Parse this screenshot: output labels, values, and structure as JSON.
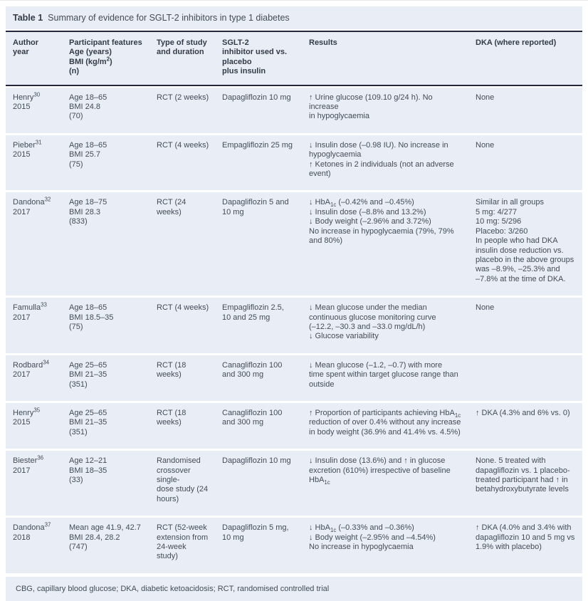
{
  "page": {
    "title_label": "Table 1",
    "title_text": "Summary of evidence for SGLT-2 inhibitors in type 1 diabetes",
    "footnote": "CBG, capillary blood glucose; DKA, diabetic ketoacidosis; RCT, randomised controlled trial"
  },
  "colors": {
    "band": "#e8edf6",
    "rule": "#242a3c",
    "text": "#454c57",
    "heading": "#343b46",
    "page": "#ffffff"
  },
  "table": {
    "columns": [
      {
        "id": "author",
        "header": "Author\nyear"
      },
      {
        "id": "participants",
        "header": "Participant features\nAge (years)\nBMI (kg/m^{2})\n(n)"
      },
      {
        "id": "study",
        "header": "Type of study\nand duration"
      },
      {
        "id": "inhibitor",
        "header": "SGLT-2\ninhibitor used vs.\nplacebo\nplus insulin"
      },
      {
        "id": "results",
        "header": "Results"
      },
      {
        "id": "dka",
        "header": "DKA (where reported)"
      }
    ],
    "rows": [
      {
        "author": "Henry^{30} 2015",
        "participants": "Age 18–65\nBMI 24.8\n(70)",
        "study": "RCT (2 weeks)",
        "inhibitor": "Dapagliflozin 10 mg",
        "results": "↑ Urine glucose (109.10 g/24 h). No increase\nin hypoglycaemia",
        "dka": "None"
      },
      {
        "author": "Pieber^{31} 2015",
        "participants": "Age 18–65\nBMI 25.7\n(75)",
        "study": "RCT (4 weeks)",
        "inhibitor": "Empagliflozin 25 mg",
        "results": "↓ Insulin dose (–0.98 IU). No increase in\nhypoglycaemia\n↑ Ketones in 2 individuals (not an adverse\nevent)",
        "dka": "None"
      },
      {
        "author": "Dandona^{32}\n2017",
        "participants": "Age 18–75\nBMI 28.3\n(833)",
        "study": "RCT (24 weeks)",
        "inhibitor": "Dapagliflozin 5 and\n10 mg",
        "results": "↓ HbA_{1c} (–0.42% and –0.45%)\n↓ Insulin dose (–8.8% and 13.2%)\n↓ Body weight (–2.96% and 3.72%)\nNo increase in hypoglycaemia (79%, 79%\nand 80%)",
        "dka": "Similar in all groups\n5 mg: 4/277\n10 mg: 5/296\nPlacebo: 3/260\nIn people who had DKA\ninsulin dose reduction vs.\nplacebo in the above groups\nwas –8.9%, –25.3% and\n–7.8% at the time of DKA."
      },
      {
        "author": "Famulla^{33}\n2017",
        "participants": "Age 18–65\nBMI 18.5–35\n(75)",
        "study": "RCT (4 weeks)",
        "inhibitor": "Empagliflozin 2.5,\n10 and 25 mg",
        "results": "↓ Mean glucose under the median\ncontinuous glucose monitoring curve\n(–12.2, –30.3 and –33.0 mg/dL/h)\n↓ Glucose variability",
        "dka": "None"
      },
      {
        "author": "Rodbard^{34}\n2017",
        "participants": "Age 25–65\nBMI 21–35\n(351)",
        "study": "RCT (18 weeks)",
        "inhibitor": "Canagliflozin 100\nand 300 mg",
        "results": "↓ Mean glucose (–1.2, –0.7) with more\ntime spent within target glucose range than\noutside",
        "dka": ""
      },
      {
        "author": "Henry^{35}\n2015",
        "participants": "Age 25–65\nBMI 21–35\n(351)",
        "study": "RCT (18 weeks)",
        "inhibitor": "Canagliflozin 100\nand 300 mg",
        "results": "↑ Proportion of participants achieving HbA_{1c}\nreduction of over 0.4% without any increase\nin body weight (36.9% and 41.4% vs. 4.5%)",
        "dka": "↑ DKA (4.3% and 6% vs. 0)"
      },
      {
        "author": "Biester^{36}\n2017",
        "participants": "Age 12–21\nBMI 18–35\n(33)",
        "study": "Randomised\ncrossover single-\ndose study (24\nhours)",
        "inhibitor": "Dapagliflozin 10 mg",
        "results": "↓ Insulin dose (13.6%) and ↑ in glucose\nexcretion (610%) irrespective of baseline\nHbA_{1c}",
        "dka": "None. 5 treated with\ndapagliflozin vs. 1 placebo-\ntreated participant had ↑ in\nbetahydroxybutyrate levels"
      },
      {
        "author": "Dandona^{37}\n2018",
        "participants": "Mean age 41.9, 42.7\nBMI 28.4, 28.2\n(747)",
        "study": "RCT (52-week\nextension from\n24-week study)",
        "inhibitor": "Dapagliflozin 5 mg,\n10 mg",
        "results": "↓ HbA_{1c} (–0.33% and –0.36%)\n↓ Body weight (–2.95% and –4.54%)\nNo increase in hypoglycaemia",
        "dka": "↑ DKA (4.0% and 3.4% with\ndapagliflozin 10 and 5 mg vs\n1.9% with placebo)"
      }
    ]
  }
}
